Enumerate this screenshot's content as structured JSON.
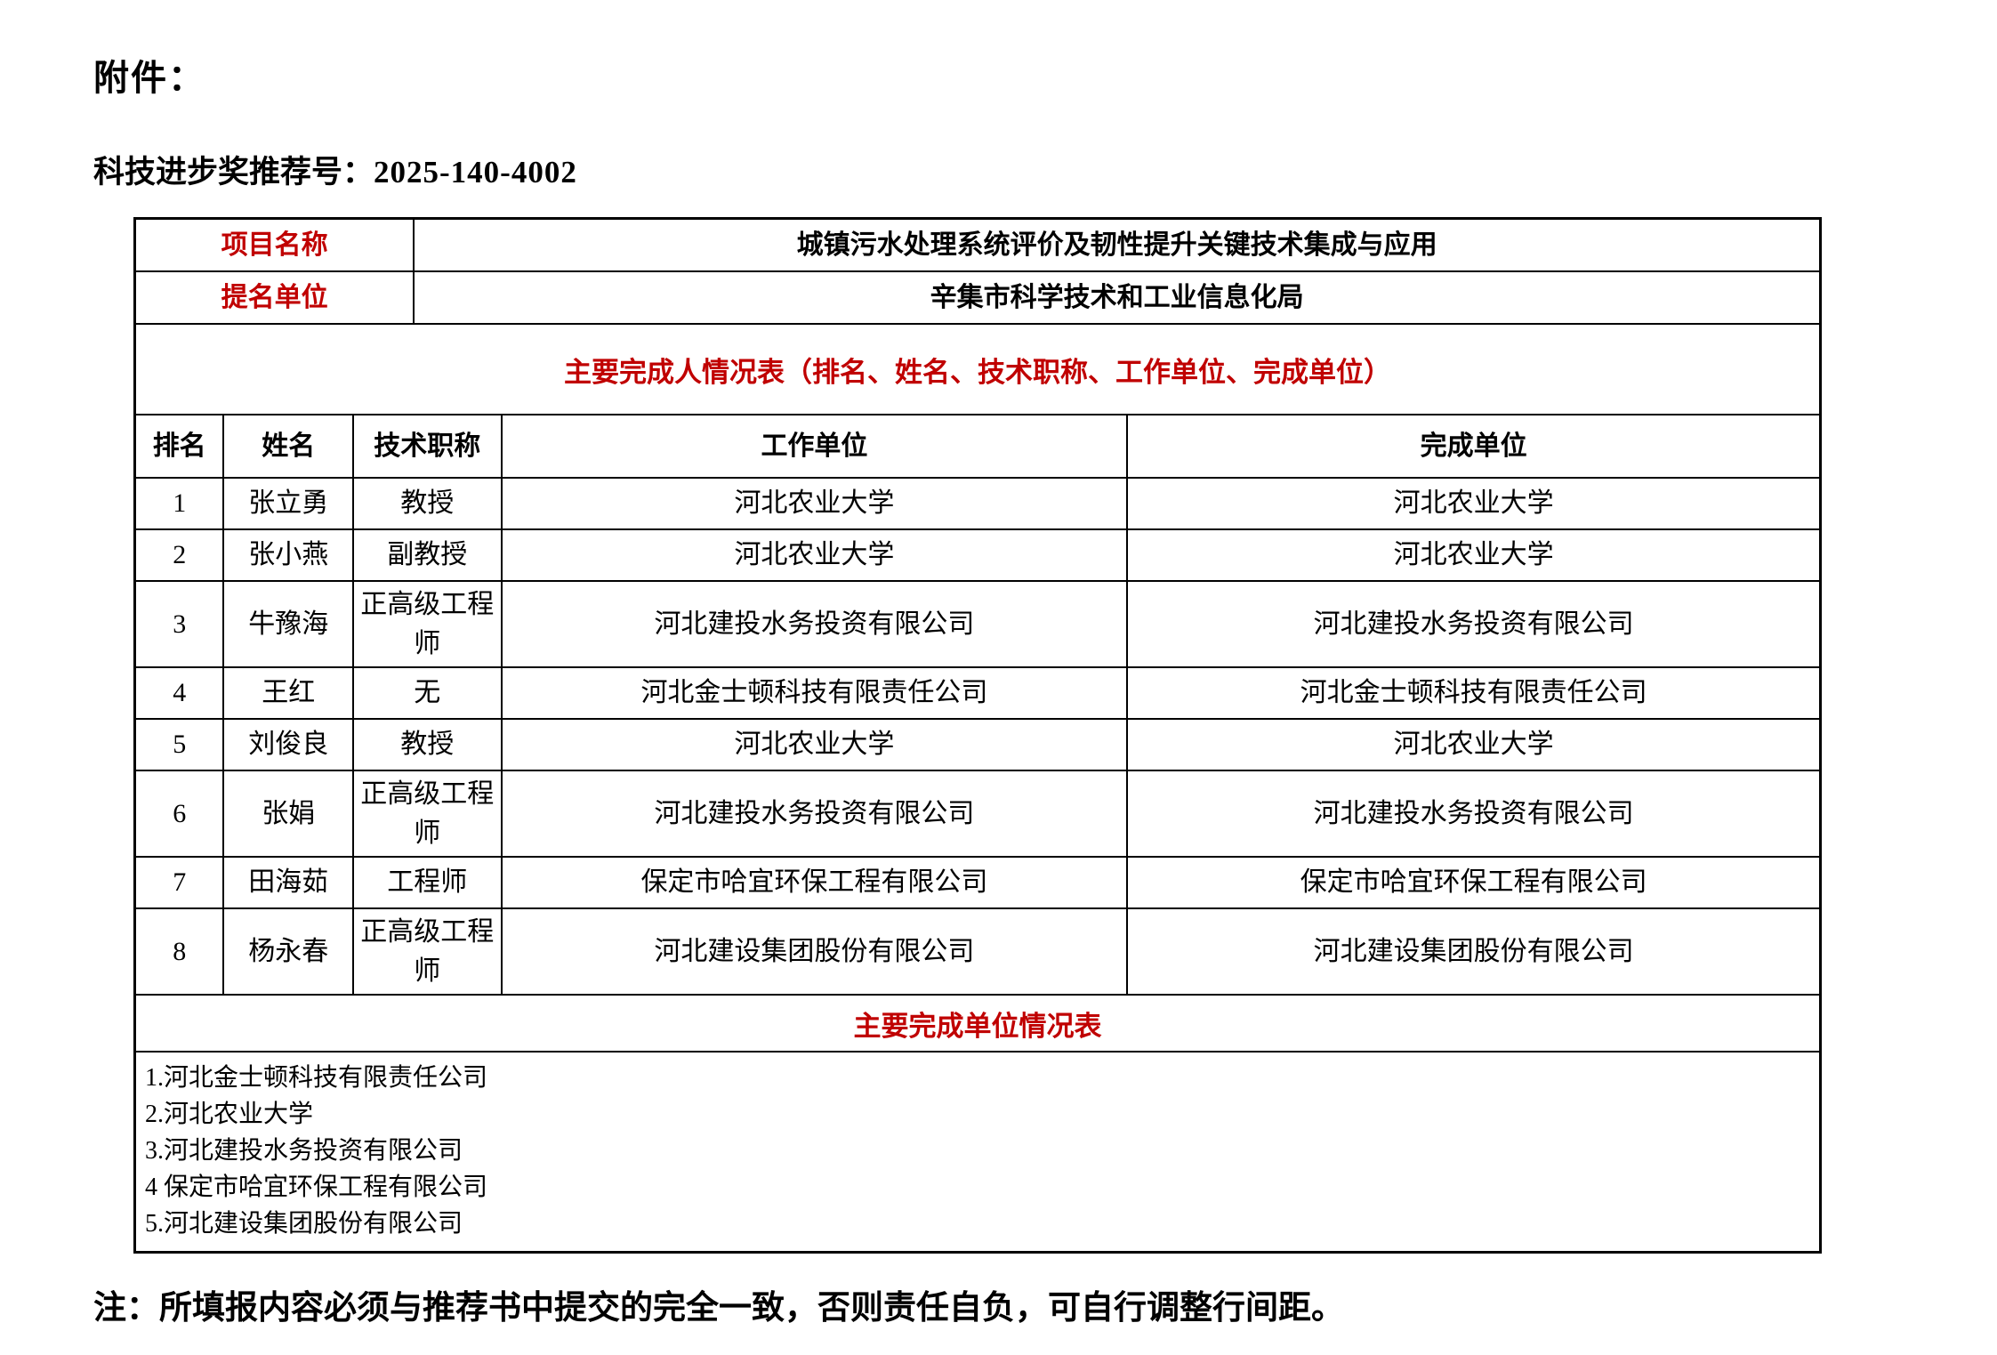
{
  "colors": {
    "accent_red": "#C00000",
    "border": "#000000",
    "background": "#FFFFFF"
  },
  "page": {
    "attachment_label": "附件：",
    "rec_no_label": "科技进步奖推荐号：",
    "rec_no_value": "2025-140-4002",
    "note": "注：所填报内容必须与推荐书中提交的完全一致，否则责任自负，可自行调整行间距。"
  },
  "info_table": {
    "rows": [
      {
        "label": "项目名称",
        "value": "城镇污水处理系统评价及韧性提升关键技术集成与应用"
      },
      {
        "label": "提名单位",
        "value": "辛集市科学技术和工业信息化局"
      }
    ]
  },
  "completers_table": {
    "title": "主要完成人情况表（排名、姓名、技术职称、工作单位、完成单位）",
    "headers": [
      "排名",
      "姓名",
      "技术职称",
      "工作单位",
      "完成单位"
    ],
    "rows": [
      [
        "1",
        "张立勇",
        "教授",
        "河北农业大学",
        "河北农业大学"
      ],
      [
        "2",
        "张小燕",
        "副教授",
        "河北农业大学",
        "河北农业大学"
      ],
      [
        "3",
        "牛豫海",
        "正高级工程师",
        "河北建投水务投资有限公司",
        "河北建投水务投资有限公司"
      ],
      [
        "4",
        "王红",
        "无",
        "河北金士顿科技有限责任公司",
        "河北金士顿科技有限责任公司"
      ],
      [
        "5",
        "刘俊良",
        "教授",
        "河北农业大学",
        "河北农业大学"
      ],
      [
        "6",
        "张娟",
        "正高级工程师",
        "河北建投水务投资有限公司",
        "河北建投水务投资有限公司"
      ],
      [
        "7",
        "田海茹",
        "工程师",
        "保定市哈宜环保工程有限公司",
        "保定市哈宜环保工程有限公司"
      ],
      [
        "8",
        "杨永春",
        "正高级工程师",
        "河北建设集团股份有限公司",
        "河北建设集团股份有限公司"
      ]
    ]
  },
  "units_table": {
    "title": "主要完成单位情况表",
    "items": [
      "1.河北金士顿科技有限责任公司",
      "2.河北农业大学",
      "3.河北建投水务投资有限公司",
      "4 保定市哈宜环保工程有限公司",
      "5.河北建设集团股份有限公司"
    ]
  }
}
